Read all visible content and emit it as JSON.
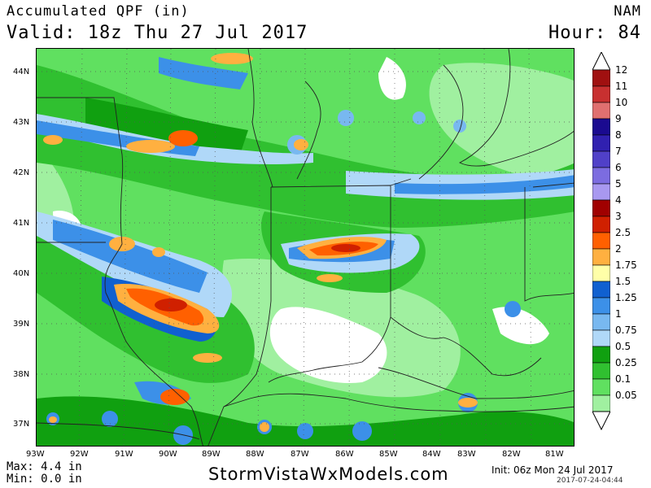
{
  "header": {
    "title": "Accumulated QPF (in)",
    "valid": "Valid: 18z Thu 27 Jul 2017",
    "model": "NAM",
    "hour": "Hour: 84"
  },
  "map": {
    "lat_labels": [
      "44N",
      "43N",
      "42N",
      "41N",
      "40N",
      "39N",
      "38N",
      "37N"
    ],
    "lon_labels": [
      "93W",
      "92W",
      "91W",
      "90W",
      "89W",
      "88W",
      "87W",
      "86W",
      "85W",
      "84W",
      "83W",
      "82W",
      "81W"
    ]
  },
  "colorbar": {
    "labels": [
      "12",
      "11",
      "10",
      "9",
      "8",
      "7",
      "6",
      "5",
      "4",
      "3",
      "2.5",
      "2",
      "1.75",
      "1.5",
      "1.25",
      "1",
      "0.75",
      "0.5",
      "0.25",
      "0.1",
      "0.05"
    ],
    "colors": [
      "#a01010",
      "#c83030",
      "#e07070",
      "#1a0a90",
      "#3020b0",
      "#5040c8",
      "#7c6ce0",
      "#a898f0",
      "#a00000",
      "#d02000",
      "#ff6000",
      "#ffb040",
      "#ffffa8",
      "#1060d0",
      "#3c90e8",
      "#78b8f0",
      "#b0d8f8",
      "#10a010",
      "#30c030",
      "#60e060",
      "#a0f0a0",
      "#ffffff"
    ]
  },
  "footer": {
    "max": "Max: 4.4 in",
    "min": "Min: 0.0 in",
    "site": "StormVistaWxModels.com",
    "init": "Init: 06z Mon 24 Jul 2017",
    "stamp": "2017-07-24-04:44"
  }
}
